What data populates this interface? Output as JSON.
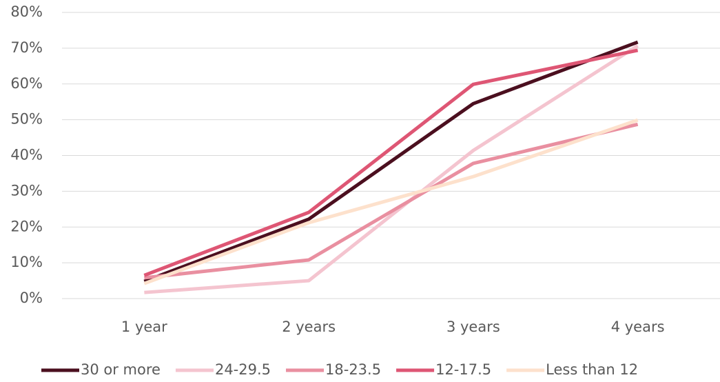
{
  "chart_data": {
    "type": "line",
    "categories": [
      "1 year",
      "2 years",
      "3 years",
      "4 years"
    ],
    "series": [
      {
        "name": "30 or more",
        "color": "#4b0f1f",
        "values": [
          4.8,
          22.2,
          54.5,
          71.7
        ]
      },
      {
        "name": "24-29.5",
        "color": "#f4c4cf",
        "values": [
          1.7,
          5.0,
          41.4,
          70.7
        ]
      },
      {
        "name": "18-23.5",
        "color": "#e98fa0",
        "values": [
          5.8,
          10.8,
          37.8,
          48.7
        ]
      },
      {
        "name": "12-17.5",
        "color": "#de5674",
        "values": [
          6.5,
          24.1,
          59.9,
          69.4
        ]
      },
      {
        "name": "Less than 12",
        "color": "#fde1cc",
        "values": [
          4.2,
          21.2,
          34.1,
          49.9
        ]
      }
    ],
    "ylim": [
      0,
      80
    ],
    "yticks": [
      {
        "value": 0,
        "label": "0%"
      },
      {
        "value": 10,
        "label": "10%"
      },
      {
        "value": 20,
        "label": "20%"
      },
      {
        "value": 30,
        "label": "30%"
      },
      {
        "value": 40,
        "label": "40%"
      },
      {
        "value": 50,
        "label": "50%"
      },
      {
        "value": 60,
        "label": "60%"
      },
      {
        "value": 70,
        "label": "70%"
      },
      {
        "value": 80,
        "label": "80%"
      }
    ],
    "grid": true,
    "legend": "bottom"
  }
}
